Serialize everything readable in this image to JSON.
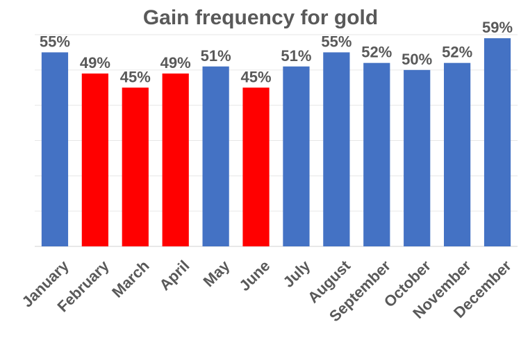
{
  "chart_data": {
    "type": "bar",
    "title": "Gain frequency for gold",
    "xlabel": "",
    "ylabel": "",
    "categories": [
      "January",
      "February",
      "March",
      "April",
      "May",
      "June",
      "July",
      "August",
      "September",
      "October",
      "November",
      "December"
    ],
    "values": [
      55,
      49,
      45,
      49,
      51,
      45,
      51,
      55,
      52,
      50,
      52,
      59
    ],
    "data_labels": [
      "55%",
      "49%",
      "45%",
      "49%",
      "51%",
      "45%",
      "51%",
      "55%",
      "52%",
      "50%",
      "52%",
      "59%"
    ],
    "ylim": [
      0,
      60
    ],
    "grid": true,
    "legend": "none",
    "colors": {
      "above_50": "#4472c4",
      "below_50": "#ff0000",
      "text": "#595959",
      "grid": "#e6e6e6"
    }
  }
}
